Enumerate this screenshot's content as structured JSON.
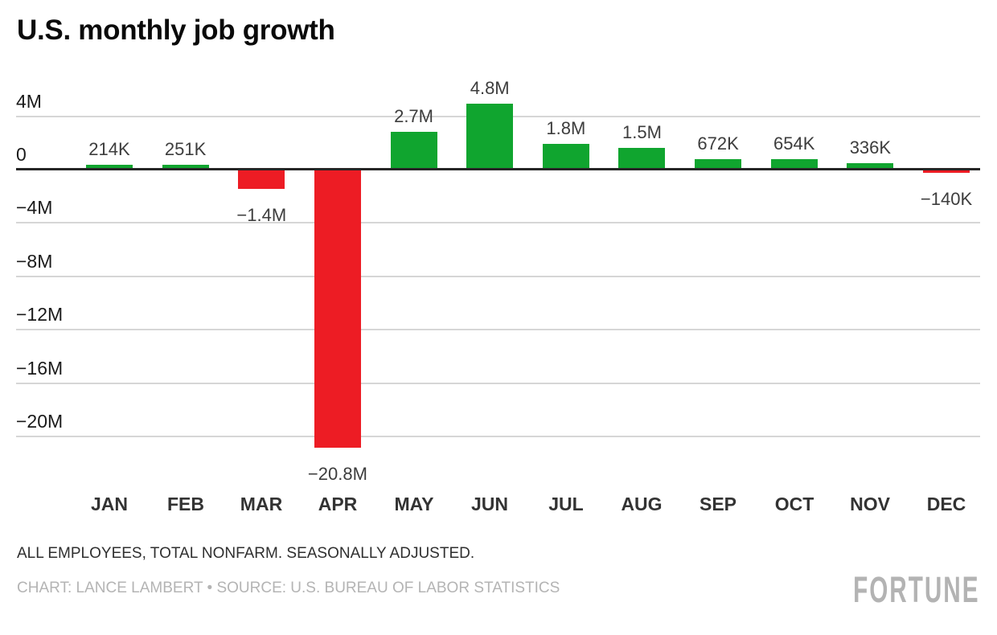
{
  "title": "U.S. monthly job growth",
  "footnote": "ALL EMPLOYEES, TOTAL NONFARM. SEASONALLY ADJUSTED.",
  "credits": "CHART: LANCE LAMBERT • SOURCE: U.S. BUREAU OF LABOR STATISTICS",
  "brand": "FORTUNE",
  "colors": {
    "positive_bar": "#10a52f",
    "negative_bar": "#ed1c24",
    "gridline": "#d6d6d6",
    "zero_axis": "#262626",
    "title_text": "#0a0a0a",
    "tick_label": "#1a1a1a",
    "value_label": "#3d3d3d",
    "month_label": "#333333",
    "footnote_text": "#2f2f2f",
    "credits_text": "#b4b4b4",
    "brand_text": "#b3b3b3",
    "background": "#ffffff"
  },
  "chart_data": {
    "type": "bar",
    "title": "U.S. monthly job growth",
    "unit": "jobs gained or lost per month",
    "categories": [
      "JAN",
      "FEB",
      "MAR",
      "APR",
      "MAY",
      "JUN",
      "JUL",
      "AUG",
      "SEP",
      "OCT",
      "NOV",
      "DEC"
    ],
    "values_millions": [
      0.214,
      0.251,
      -1.4,
      -20.8,
      2.7,
      4.8,
      1.8,
      1.5,
      0.672,
      0.654,
      0.336,
      -0.14
    ],
    "value_labels": [
      "214K",
      "251K",
      "−1.4M",
      "−20.8M",
      "2.7M",
      "4.8M",
      "1.8M",
      "1.5M",
      "672K",
      "654K",
      "336K",
      "−140K"
    ],
    "yticks": [
      {
        "value": 4,
        "label": "4M"
      },
      {
        "value": 0,
        "label": "0"
      },
      {
        "value": -4,
        "label": "−4M"
      },
      {
        "value": -8,
        "label": "−8M"
      },
      {
        "value": -12,
        "label": "−12M"
      },
      {
        "value": -16,
        "label": "−16M"
      },
      {
        "value": -20,
        "label": "−20M"
      }
    ],
    "ylim": [
      -22,
      5.2
    ],
    "xlabel": "",
    "ylabel": "",
    "grid": "horizontal",
    "legend": "none",
    "bar_color_rule": "green when positive, red when negative"
  }
}
